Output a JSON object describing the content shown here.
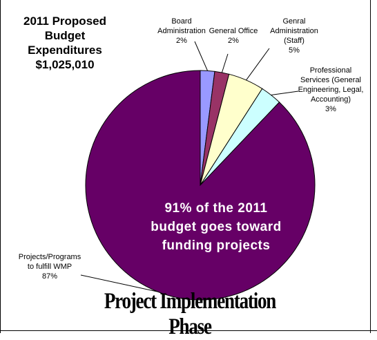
{
  "chart_data": {
    "type": "pie",
    "title": [
      "2011 Proposed Budget",
      "Expenditures",
      "$1,025,010"
    ],
    "slices": [
      {
        "label": [
          "Board",
          "Administration"
        ],
        "value": 2,
        "percent_label": "2%",
        "color": "#9999ff"
      },
      {
        "label": [
          "General Office"
        ],
        "value": 2,
        "percent_label": "2%",
        "color": "#993366"
      },
      {
        "label": [
          "Genral",
          "Administration",
          "(Staff)"
        ],
        "value": 5,
        "percent_label": "5%",
        "color": "#ffffcc"
      },
      {
        "label": [
          "Professional",
          "Services (General",
          "Engineering, Legal,",
          "Accounting)"
        ],
        "value": 3,
        "percent_label": "3%",
        "color": "#ccffff"
      },
      {
        "label": [
          "Projects/Programs",
          "to fulfill WMP"
        ],
        "value": 87,
        "percent_label": "87%",
        "color": "#660066"
      }
    ],
    "annotation": [
      "91% of the 2011",
      "budget goes toward",
      "funding projects"
    ],
    "footer": "Project Implementation Phase"
  }
}
